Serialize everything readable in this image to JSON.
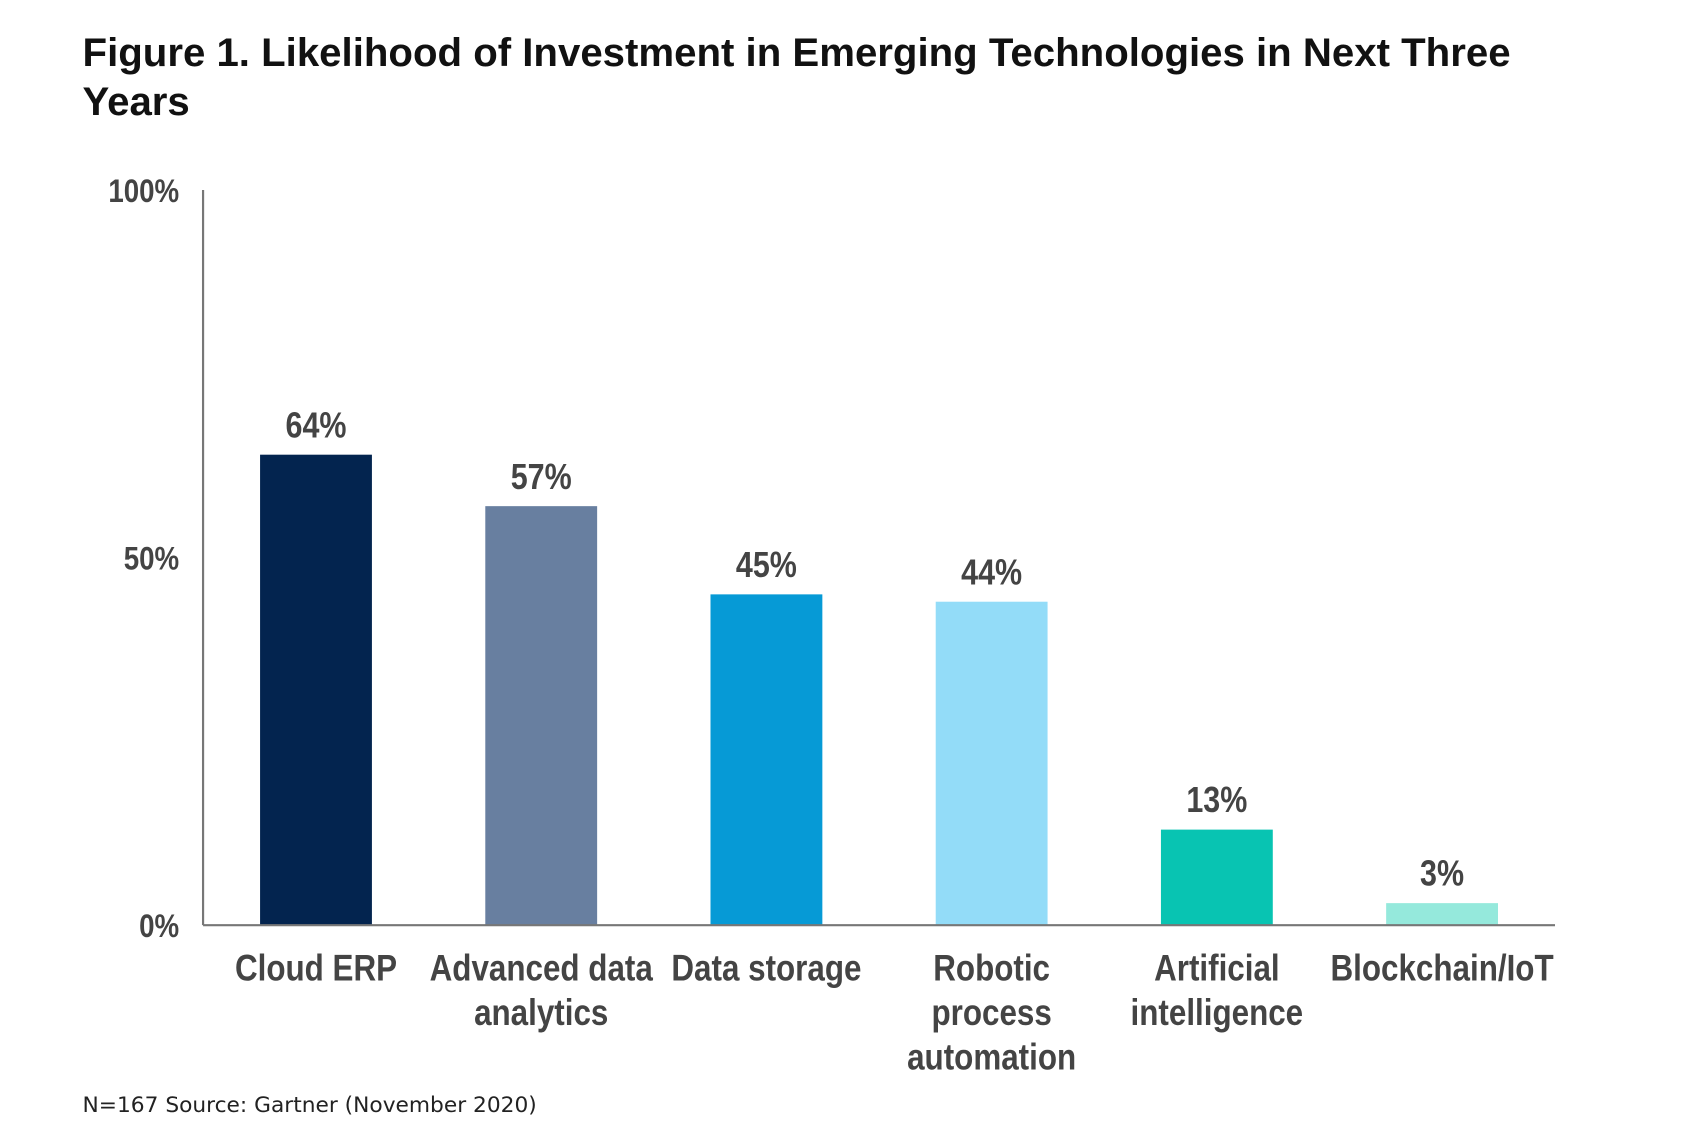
{
  "chart_data": {
    "type": "bar",
    "title": "Figure 1. Likelihood of Investment in Emerging Technologies in Next Three Years",
    "categories": [
      "Cloud ERP",
      "Advanced data analytics",
      "Data storage",
      "Robotic process automation",
      "Artificial intelligence",
      "Blockchain/IoT"
    ],
    "category_lines": [
      [
        "Cloud ERP"
      ],
      [
        "Advanced data",
        "analytics"
      ],
      [
        "Data storage"
      ],
      [
        "Robotic",
        "process",
        "automation"
      ],
      [
        "Artificial",
        "intelligence"
      ],
      [
        "Blockchain/IoT"
      ]
    ],
    "values": [
      64,
      57,
      45,
      44,
      13,
      3
    ],
    "data_labels": [
      "64%",
      "57%",
      "45%",
      "44%",
      "13%",
      "3%"
    ],
    "colors": [
      "#03244f",
      "#687fa0",
      "#069ad6",
      "#93dcf8",
      "#08c4b2",
      "#95e9dc"
    ],
    "ylim": [
      0,
      100
    ],
    "yticks": [
      0,
      50,
      100
    ],
    "ytick_labels": [
      "0%",
      "50%",
      "100%"
    ],
    "xlabel": "",
    "ylabel": "",
    "grid": false,
    "legend": "none",
    "footnote": "N=167 Source: Gartner (November 2020)"
  }
}
